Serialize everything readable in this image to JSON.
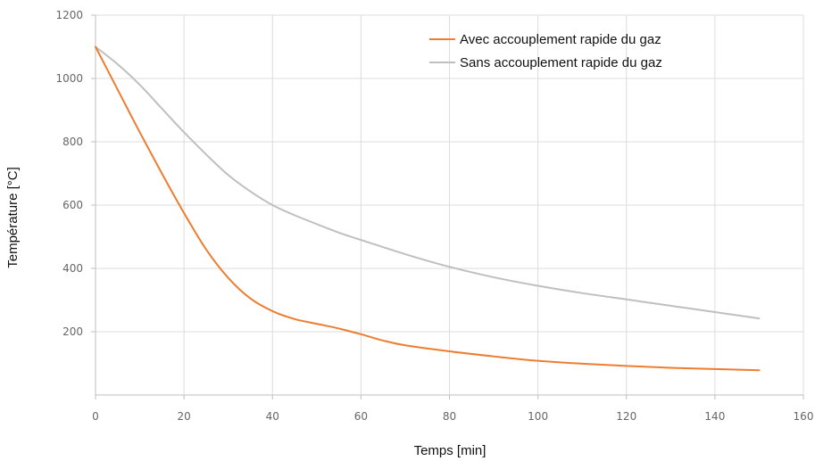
{
  "chart_data": {
    "type": "line",
    "title": "",
    "xlabel": "Temps [min]",
    "ylabel": "Température [°C]",
    "xlim": [
      0,
      160
    ],
    "ylim": [
      0,
      1200
    ],
    "x_ticks": [
      0,
      20,
      40,
      60,
      80,
      100,
      120,
      140,
      160
    ],
    "y_ticks": [
      200,
      400,
      600,
      800,
      1000,
      1200
    ],
    "grid": true,
    "legend_position": "top-right",
    "series": [
      {
        "name": "Avec accouplement rapide du gaz",
        "color": "#ed7d31",
        "x": [
          0,
          5,
          10,
          15,
          20,
          25,
          30,
          35,
          40,
          45,
          50,
          55,
          60,
          65,
          70,
          80,
          90,
          100,
          110,
          120,
          130,
          140,
          150
        ],
        "y": [
          1100,
          965,
          830,
          700,
          575,
          460,
          370,
          305,
          265,
          240,
          225,
          210,
          192,
          172,
          157,
          138,
          122,
          108,
          99,
          92,
          86,
          82,
          78
        ]
      },
      {
        "name": "Sans accouplement rapide du gaz",
        "color": "#bfbfbf",
        "x": [
          0,
          5,
          10,
          15,
          20,
          25,
          30,
          35,
          40,
          45,
          50,
          55,
          60,
          70,
          80,
          90,
          100,
          110,
          120,
          130,
          140,
          150
        ],
        "y": [
          1100,
          1045,
          980,
          905,
          830,
          760,
          695,
          643,
          600,
          568,
          540,
          513,
          490,
          445,
          405,
          372,
          345,
          322,
          302,
          282,
          262,
          242
        ]
      }
    ]
  }
}
